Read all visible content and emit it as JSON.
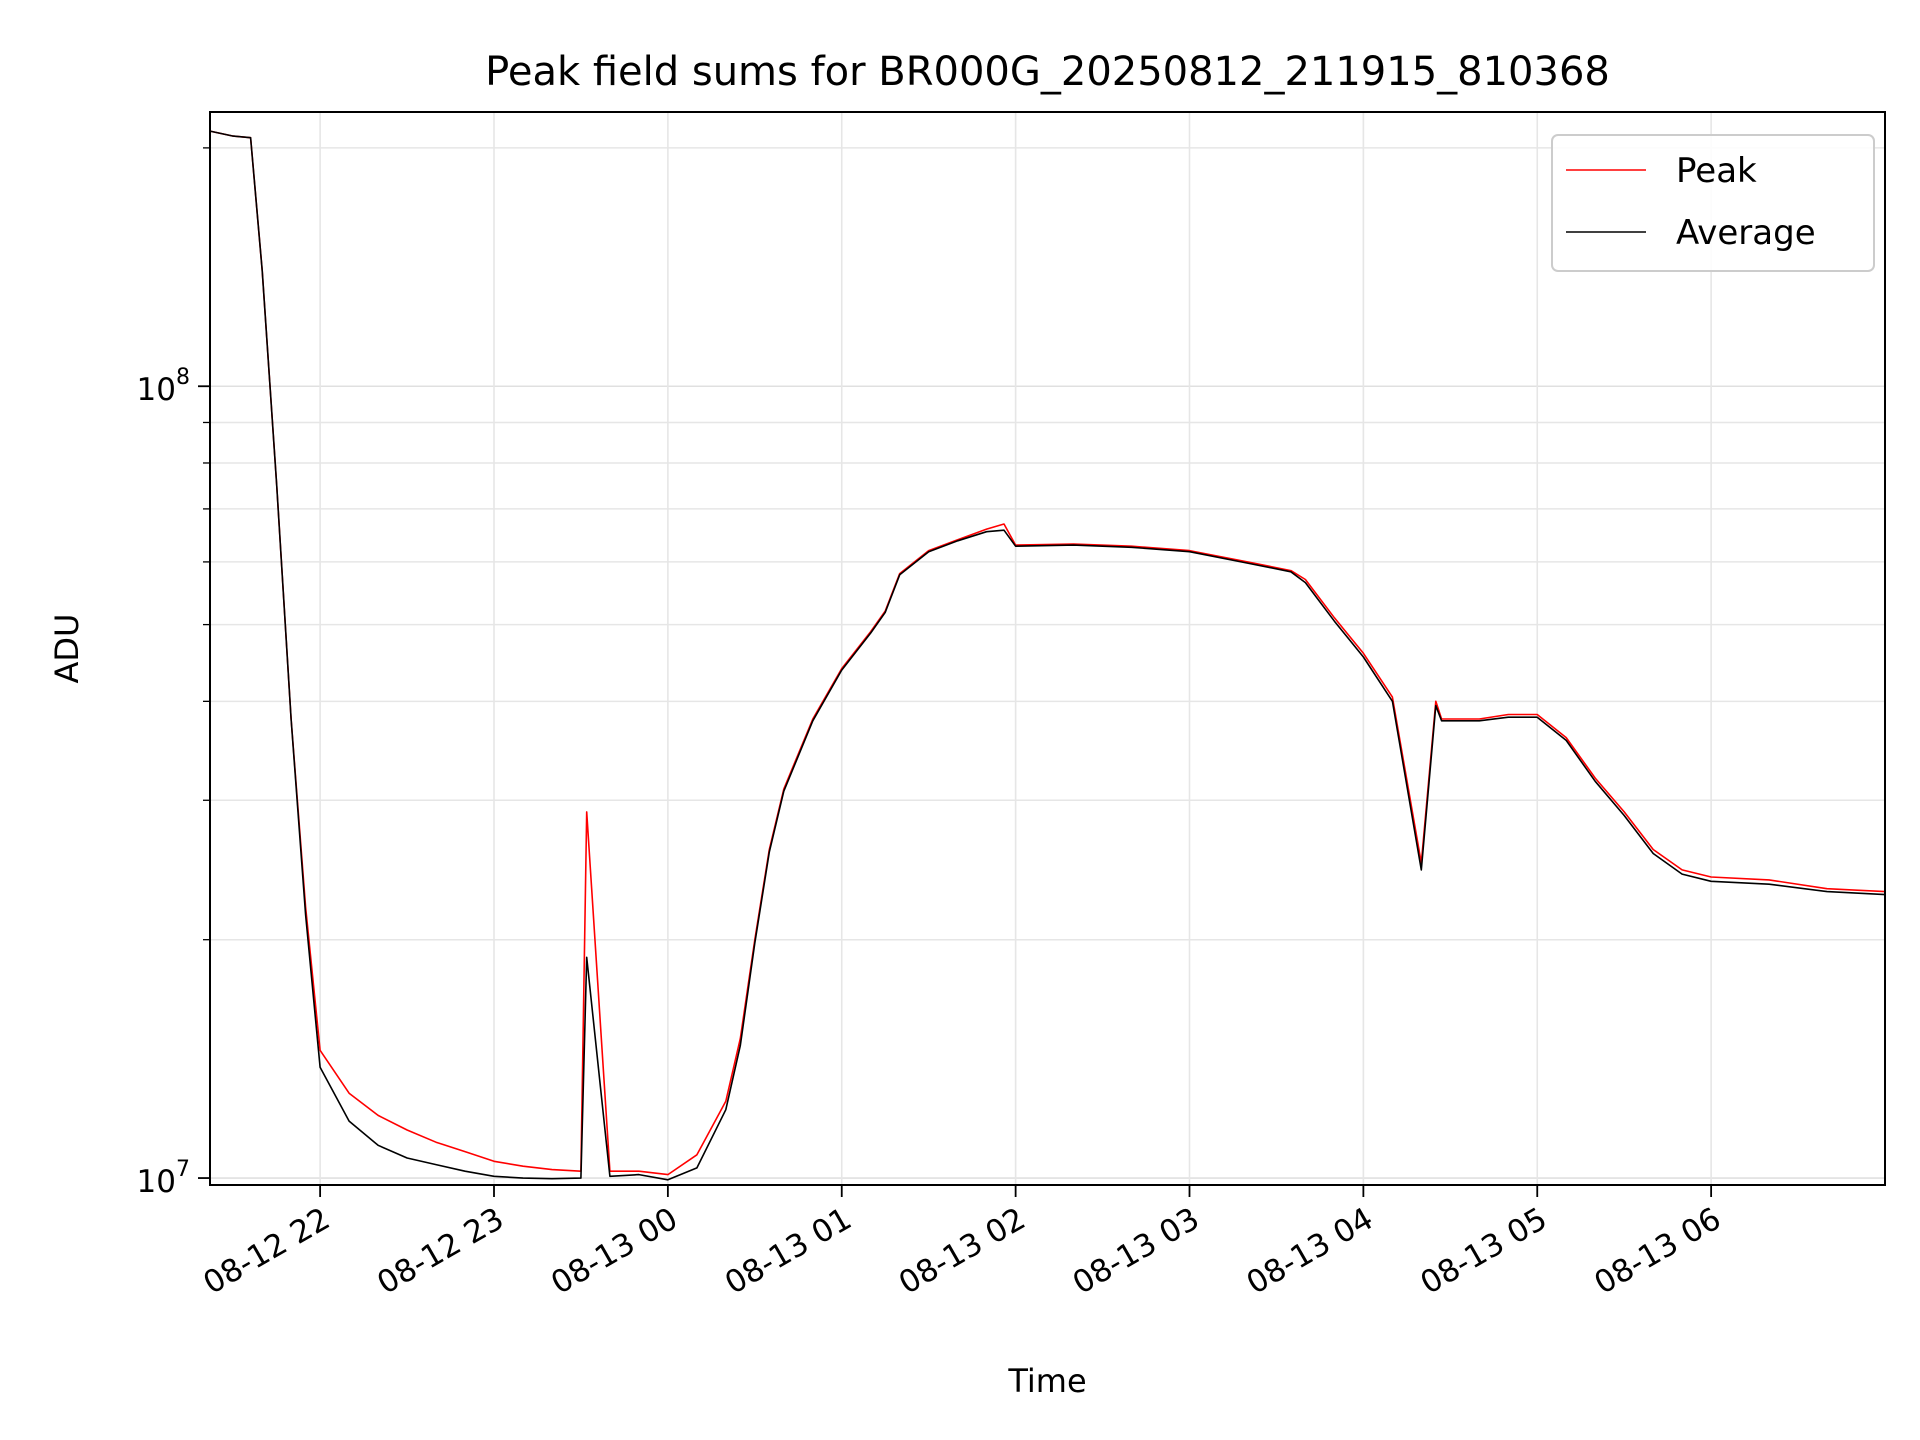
{
  "chart_data": {
    "type": "line",
    "title": "Peak field sums for BR000G_20250812_211915_810368",
    "xlabel": "Time",
    "ylabel": "ADU",
    "y_scale": "log",
    "ylim": [
      9800000,
      222000000
    ],
    "xlim": [
      "08-12 21:22",
      "08-13 07:00"
    ],
    "x_tick_labels": [
      "08-12 22",
      "08-12 23",
      "08-13 00",
      "08-13 01",
      "08-13 02",
      "08-13 03",
      "08-13 04",
      "08-13 05",
      "08-13 06"
    ],
    "y_tick_labels": [
      {
        "base": "10",
        "exp": "7",
        "value": 10000000
      },
      {
        "base": "10",
        "exp": "8",
        "value": 100000000
      }
    ],
    "grid": true,
    "legend_position": "upper right",
    "series": [
      {
        "name": "Peak",
        "color": "#ff0000",
        "x": [
          "08-12 21:22",
          "08-12 21:30",
          "08-12 21:36",
          "08-12 21:40",
          "08-12 21:45",
          "08-12 21:50",
          "08-12 21:55",
          "08-12 22:00",
          "08-12 22:10",
          "08-12 22:20",
          "08-12 22:30",
          "08-12 22:40",
          "08-12 22:50",
          "08-12 23:00",
          "08-12 23:10",
          "08-12 23:20",
          "08-12 23:30",
          "08-12 23:32",
          "08-12 23:40",
          "08-12 23:50",
          "08-13 00:00",
          "08-13 00:10",
          "08-13 00:20",
          "08-13 00:25",
          "08-13 00:30",
          "08-13 00:35",
          "08-13 00:40",
          "08-13 00:50",
          "08-13 01:00",
          "08-13 01:10",
          "08-13 01:15",
          "08-13 01:20",
          "08-13 01:30",
          "08-13 01:40",
          "08-13 01:50",
          "08-13 01:56",
          "08-13 02:00",
          "08-13 02:20",
          "08-13 02:40",
          "08-13 03:00",
          "08-13 03:20",
          "08-13 03:35",
          "08-13 03:40",
          "08-13 03:50",
          "08-13 04:00",
          "08-13 04:10",
          "08-13 04:20",
          "08-13 04:25",
          "08-13 04:27",
          "08-13 04:40",
          "08-13 04:50",
          "08-13 05:00",
          "08-13 05:10",
          "08-13 05:20",
          "08-13 05:30",
          "08-13 05:40",
          "08-13 05:50",
          "08-13 06:00",
          "08-13 06:20",
          "08-13 06:40",
          "08-13 07:00"
        ],
        "y": [
          210000000,
          207000000,
          206000000,
          140000000,
          75000000,
          38000000,
          22000000,
          14500000,
          12800000,
          12000000,
          11500000,
          11100000,
          10800000,
          10500000,
          10350000,
          10250000,
          10200000,
          29000000,
          10200000,
          10200000,
          10100000,
          10700000,
          12500000,
          15000000,
          20000000,
          26000000,
          31000000,
          38000000,
          44000000,
          49000000,
          52000000,
          58000000,
          62000000,
          64000000,
          66000000,
          67000000,
          63000000,
          63200000,
          62800000,
          62000000,
          60000000,
          58500000,
          57000000,
          51000000,
          46000000,
          40500000,
          25000000,
          40000000,
          38000000,
          38000000,
          38500000,
          38500000,
          36000000,
          32000000,
          29000000,
          26000000,
          24500000,
          24000000,
          23800000,
          23200000,
          23000000
        ]
      },
      {
        "name": "Average",
        "color": "#000000",
        "x": [
          "08-12 21:22",
          "08-12 21:30",
          "08-12 21:36",
          "08-12 21:40",
          "08-12 21:45",
          "08-12 21:50",
          "08-12 21:55",
          "08-12 22:00",
          "08-12 22:10",
          "08-12 22:20",
          "08-12 22:30",
          "08-12 22:40",
          "08-12 22:50",
          "08-12 23:00",
          "08-12 23:10",
          "08-12 23:20",
          "08-12 23:30",
          "08-12 23:32",
          "08-12 23:40",
          "08-12 23:50",
          "08-13 00:00",
          "08-13 00:10",
          "08-13 00:20",
          "08-13 00:25",
          "08-13 00:30",
          "08-13 00:35",
          "08-13 00:40",
          "08-13 00:50",
          "08-13 01:00",
          "08-13 01:10",
          "08-13 01:15",
          "08-13 01:20",
          "08-13 01:30",
          "08-13 01:40",
          "08-13 01:50",
          "08-13 01:56",
          "08-13 02:00",
          "08-13 02:20",
          "08-13 02:40",
          "08-13 03:00",
          "08-13 03:20",
          "08-13 03:35",
          "08-13 03:40",
          "08-13 03:50",
          "08-13 04:00",
          "08-13 04:10",
          "08-13 04:20",
          "08-13 04:25",
          "08-13 04:27",
          "08-13 04:40",
          "08-13 04:50",
          "08-13 05:00",
          "08-13 05:10",
          "08-13 05:20",
          "08-13 05:30",
          "08-13 05:40",
          "08-13 05:50",
          "08-13 06:00",
          "08-13 06:20",
          "08-13 06:40",
          "08-13 07:00"
        ],
        "y": [
          210000000,
          207000000,
          206000000,
          140000000,
          75000000,
          38000000,
          21500000,
          13800000,
          11800000,
          11000000,
          10600000,
          10400000,
          10200000,
          10050000,
          10000000,
          9980000,
          10000000,
          19000000,
          10050000,
          10100000,
          9950000,
          10300000,
          12200000,
          14700000,
          19800000,
          25800000,
          30800000,
          37800000,
          43800000,
          48800000,
          51800000,
          57800000,
          61800000,
          63800000,
          65500000,
          65800000,
          62800000,
          63000000,
          62600000,
          61800000,
          59800000,
          58300000,
          56500000,
          50500000,
          45500000,
          40000000,
          24500000,
          39500000,
          37800000,
          37800000,
          38200000,
          38200000,
          35700000,
          31700000,
          28700000,
          25700000,
          24200000,
          23700000,
          23500000,
          23000000,
          22800000
        ]
      }
    ]
  }
}
